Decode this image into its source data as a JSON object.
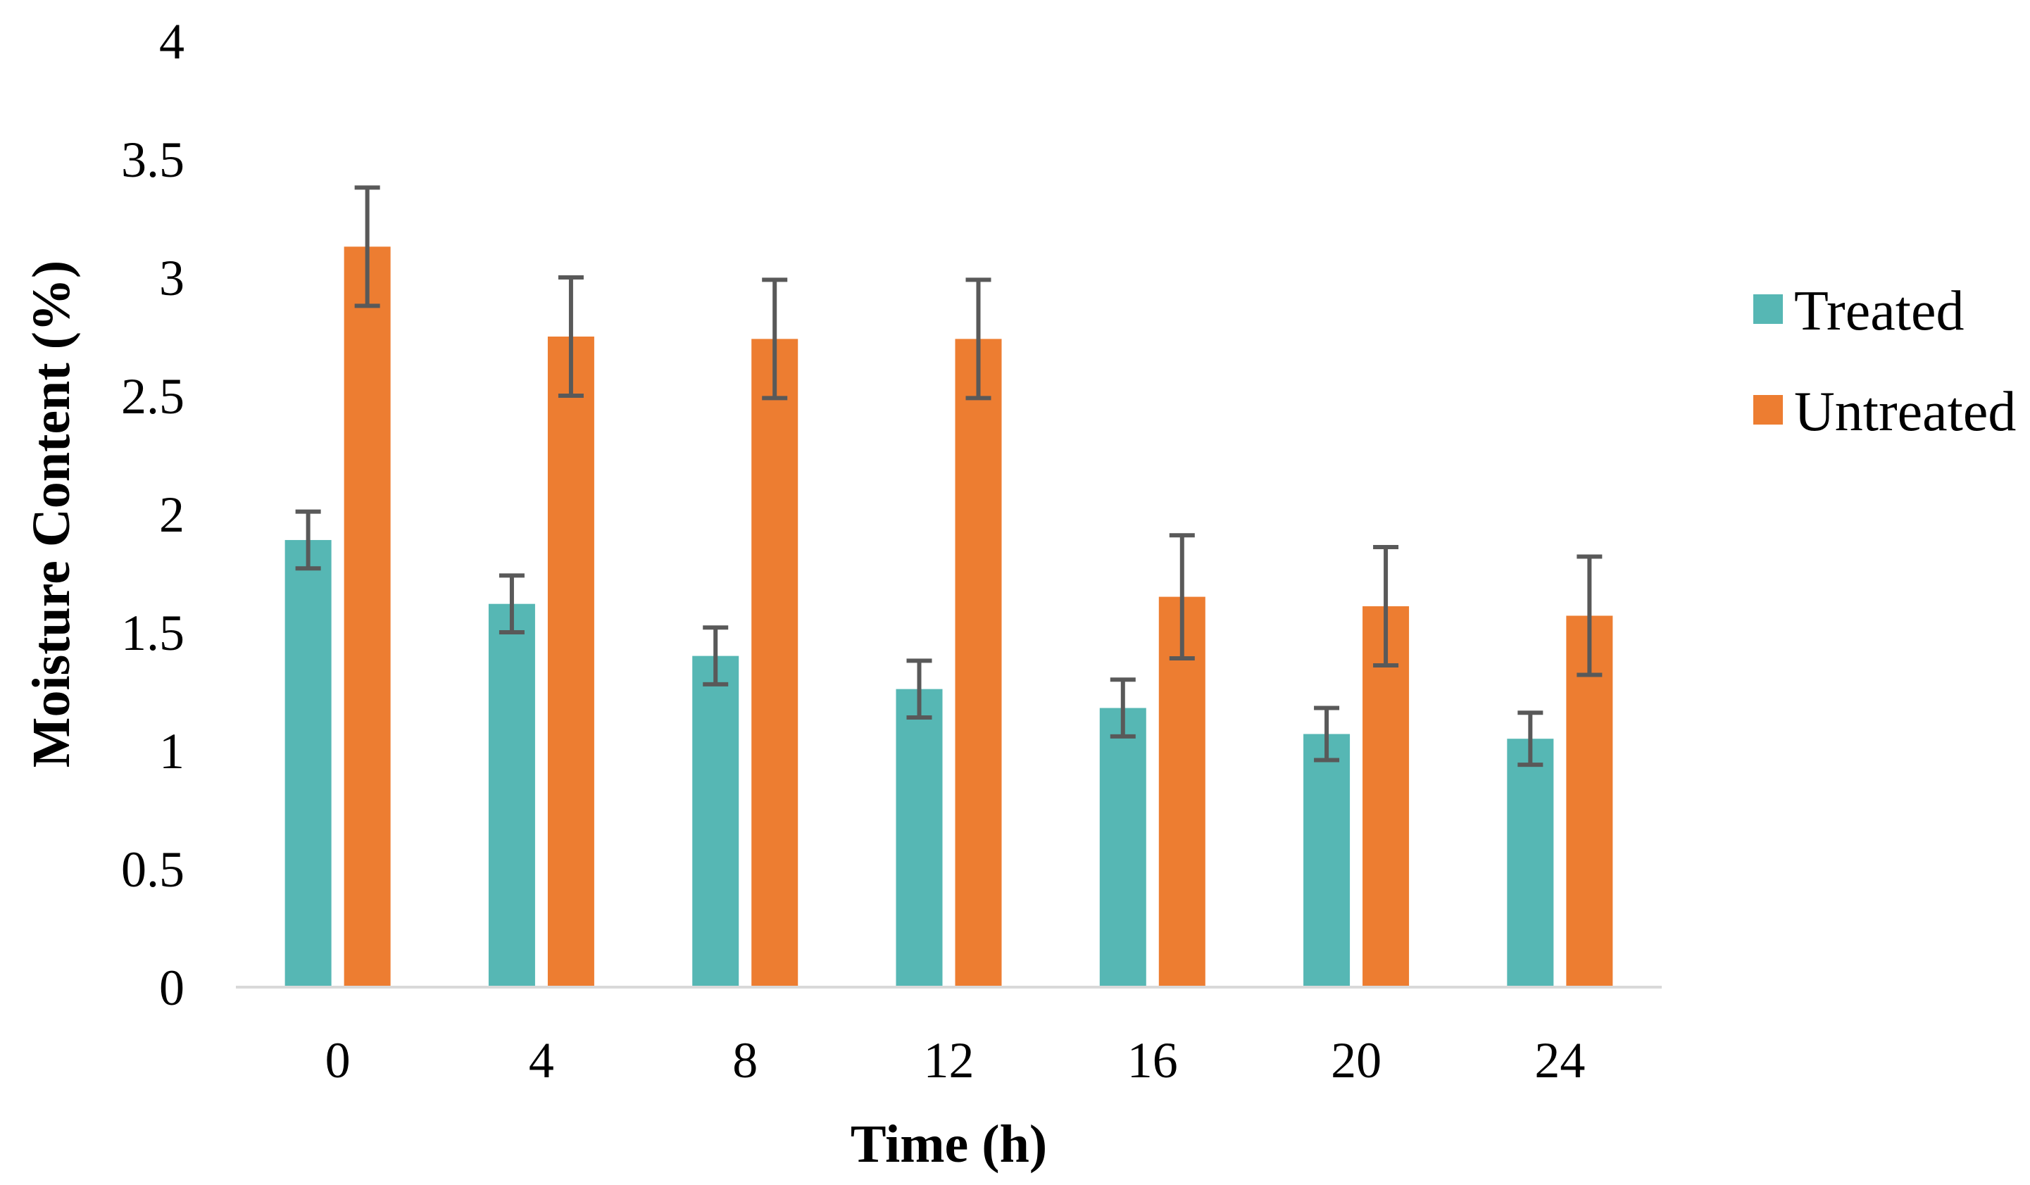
{
  "chart_data": {
    "type": "bar",
    "title": "",
    "xlabel": "Time (h)",
    "ylabel": "Moisture Content (%)",
    "categories": [
      "0",
      "4",
      "8",
      "12",
      "16",
      "20",
      "24"
    ],
    "ylim": [
      0,
      4
    ],
    "yticks": [
      "0",
      "0.5",
      "1",
      "1.5",
      "2",
      "2.5",
      "3",
      "3.5",
      "4"
    ],
    "grid": false,
    "legend_position": "right",
    "series": [
      {
        "name": "Treated",
        "color": "#56B7B4",
        "values": [
          1.89,
          1.62,
          1.4,
          1.26,
          1.18,
          1.07,
          1.05
        ],
        "errors": [
          0.12,
          0.12,
          0.12,
          0.12,
          0.12,
          0.11,
          0.11
        ]
      },
      {
        "name": "Untreated",
        "color": "#ED7D31",
        "values": [
          3.13,
          2.75,
          2.74,
          2.74,
          1.65,
          1.61,
          1.57
        ],
        "errors": [
          0.25,
          0.25,
          0.25,
          0.25,
          0.26,
          0.25,
          0.25
        ]
      }
    ],
    "error_bar_color": "#595959",
    "axis_color": "#D9D9D9"
  }
}
